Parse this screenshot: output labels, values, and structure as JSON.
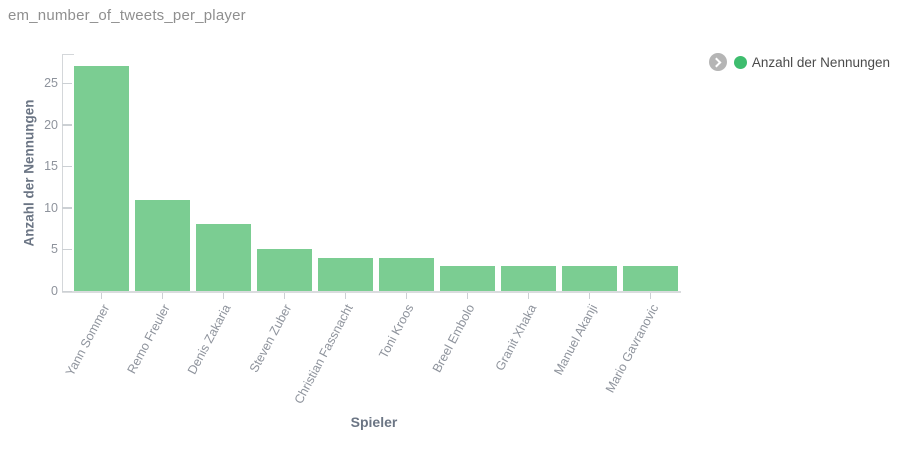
{
  "title": "em_number_of_tweets_per_player",
  "legend": {
    "expander_icon": "chevron-right-icon",
    "label": "Anzahl der Nennungen"
  },
  "axes": {
    "x_title": "Spieler",
    "y_title": "Anzahl der Nennungen"
  },
  "colors": {
    "bar": "#7bcd92",
    "legend_dot": "#3ebd6e",
    "axis_line": "#d4d7da",
    "tick_label": "#8e939c",
    "axis_title": "#6b7584",
    "title": "#8f8f8f"
  },
  "chart_data": {
    "type": "bar",
    "title": "em_number_of_tweets_per_player",
    "categories": [
      "Yann Sommer",
      "Remo Freuler",
      "Denis Zakaria",
      "Steven Zuber",
      "Christian Fassnacht",
      "Toni Kroos",
      "Breel Embolo",
      "Granit Xhaka",
      "Manuel Akanji",
      "Mario Gavranovic"
    ],
    "values": [
      27,
      11,
      8,
      5,
      4,
      4,
      3,
      3,
      3,
      3
    ],
    "series_name": "Anzahl der Nennungen",
    "xlabel": "Spieler",
    "ylabel": "Anzahl der Nennungen",
    "ylim": [
      0,
      28.5
    ],
    "yticks": [
      0,
      5,
      10,
      15,
      20,
      25
    ],
    "grid": false,
    "legend_position": "top-right",
    "bar_color": "#7bcd92"
  }
}
